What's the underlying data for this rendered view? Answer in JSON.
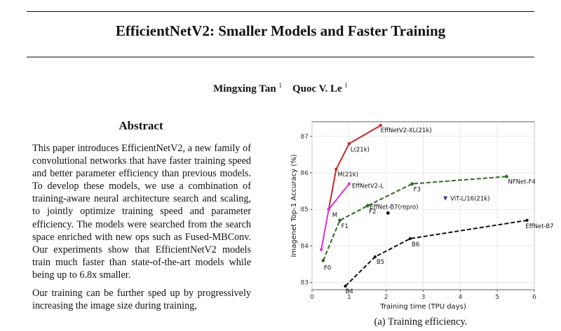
{
  "paper": {
    "title": "EfficientNetV2: Smaller Models and Faster Training",
    "authors": [
      {
        "name": "Mingxing Tan",
        "affiliation_mark": "1"
      },
      {
        "name": "Quoc V. Le",
        "affiliation_mark": "1"
      }
    ],
    "abstract_heading": "Abstract",
    "abstract_paragraphs": [
      "This paper introduces EfficientNetV2, a new family of convolutional networks that have faster training speed and better parameter efficiency than previous models. To develop these models, we use a combination of training-aware neural architecture search and scaling, to jointly optimize training speed and parameter efficiency. The models were searched from the search space enriched with new ops such as Fused-MBConv. Our experiments show that EfficientNetV2 models train much faster than state-of-the-art models while being up to 6.8x smaller.",
      "Our training can be further sped up by progressively increasing the image size during training,"
    ],
    "figure_caption": "(a) Training efficiency."
  },
  "chart_data": {
    "type": "line",
    "xlabel": "Training time (TPU days)",
    "ylabel": "Imagenet Top-1 Accuracy (%)",
    "xlim": [
      0,
      6
    ],
    "ylim": [
      82.8,
      87.4
    ],
    "xticks": [
      0,
      1,
      2,
      3,
      4,
      5,
      6
    ],
    "yticks": [
      83,
      84,
      85,
      86,
      87
    ],
    "grid": true,
    "legend": "none",
    "series": [
      {
        "color": "#c62828",
        "dashed": false,
        "marker": "circle",
        "points": [
          [
            0.45,
            85.0
          ],
          [
            0.65,
            86.1
          ],
          [
            1.0,
            86.8
          ],
          [
            1.85,
            87.3
          ]
        ],
        "labels": [
          "M",
          "M(21k)",
          "L(21k)",
          "EffNetV2-XL(21k)"
        ]
      },
      {
        "color": "#d633d6",
        "dashed": false,
        "marker": "circle",
        "points": [
          [
            0.25,
            83.9
          ],
          [
            0.45,
            85.0
          ],
          [
            1.0,
            85.7
          ]
        ],
        "labels": [
          "",
          "",
          "EffNetV2-L"
        ]
      },
      {
        "color": "#2e6b1f",
        "dashed": true,
        "marker": "diamond",
        "points": [
          [
            0.3,
            83.6
          ],
          [
            0.75,
            84.7
          ],
          [
            1.5,
            85.1
          ],
          [
            2.7,
            85.7
          ],
          [
            5.25,
            85.9
          ]
        ],
        "labels": [
          "F0",
          "F1",
          "F2",
          "F3",
          "NFNet-F4"
        ]
      },
      {
        "color": "#111111",
        "dashed": true,
        "marker": "circle",
        "points": [
          [
            0.9,
            82.9
          ],
          [
            1.7,
            83.7
          ],
          [
            2.65,
            84.2
          ],
          [
            5.8,
            84.7
          ]
        ],
        "labels": [
          "B4",
          "B5",
          "B6",
          "EffNet-B7"
        ]
      }
    ],
    "single_points": [
      {
        "label": "EffNet-B7(repro)",
        "x": 2.05,
        "y": 84.9,
        "color": "#111111",
        "marker": "diamond"
      },
      {
        "label": "ViT-L/16(21k)",
        "x": 3.6,
        "y": 85.3,
        "color": "#2436a8",
        "marker": "triangle"
      }
    ]
  }
}
